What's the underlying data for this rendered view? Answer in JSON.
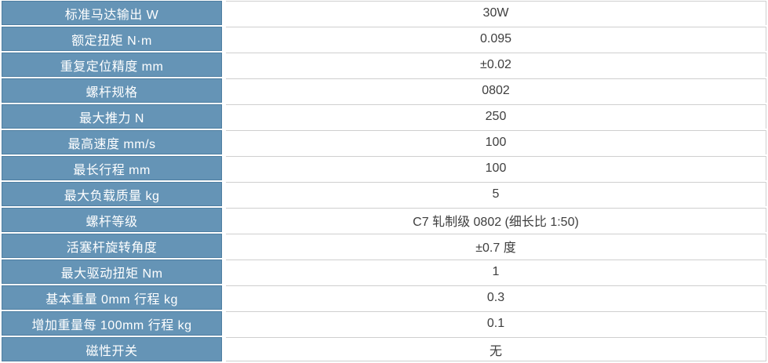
{
  "colors": {
    "page_bg": "#FFFFFF",
    "label_bg": "#6594B6",
    "label_border": "#4E7EA1",
    "label_text": "#FFFFFF",
    "value_border": "#CFCFCF",
    "value_text": "#3E3E3E"
  },
  "table": {
    "rows": [
      {
        "label": "标准马达输出 W",
        "value": "30W"
      },
      {
        "label": "额定扭矩 N·m",
        "value": "0.095"
      },
      {
        "label": "重复定位精度 mm",
        "value": "±0.02"
      },
      {
        "label": "螺杆规格",
        "value": "0802"
      },
      {
        "label": "最大推力 N",
        "value": "250"
      },
      {
        "label": "最高速度 mm/s",
        "value": "100"
      },
      {
        "label": "最长行程 mm",
        "value": "100"
      },
      {
        "label": "最大负载质量 kg",
        "value": "5"
      },
      {
        "label": "螺杆等级",
        "value": "C7 轧制级 0802 (细长比 1:50)"
      },
      {
        "label": "活塞杆旋转角度",
        "value": "±0.7 度"
      },
      {
        "label": "最大驱动扭矩 Nm",
        "value": "1"
      },
      {
        "label": "基本重量 0mm 行程 kg",
        "value": "0.3"
      },
      {
        "label": "增加重量每 100mm 行程 kg",
        "value": "0.1"
      },
      {
        "label": "磁性开关",
        "value": "无"
      }
    ]
  }
}
